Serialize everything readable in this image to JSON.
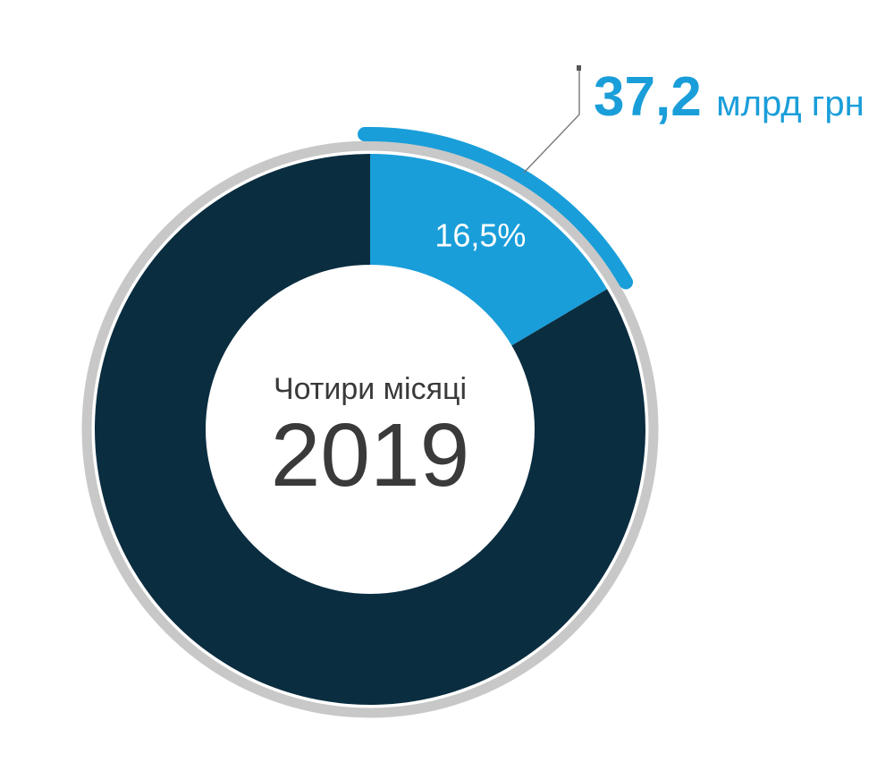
{
  "chart_data": {
    "type": "pie",
    "slices": [
      {
        "value": 16.5,
        "label": "16,5%",
        "color": "#1a9ed9"
      },
      {
        "value": 83.5,
        "label": "",
        "color": "#0a2d40"
      }
    ],
    "center": {
      "subtitle": "Чотири місяці",
      "year": "2019"
    },
    "callout": {
      "value": "37,2",
      "unit": "млрд грн",
      "color": "#1a9ed9"
    },
    "ring_color": "#c8c8c8",
    "arc_color": "#1a9ed9"
  }
}
